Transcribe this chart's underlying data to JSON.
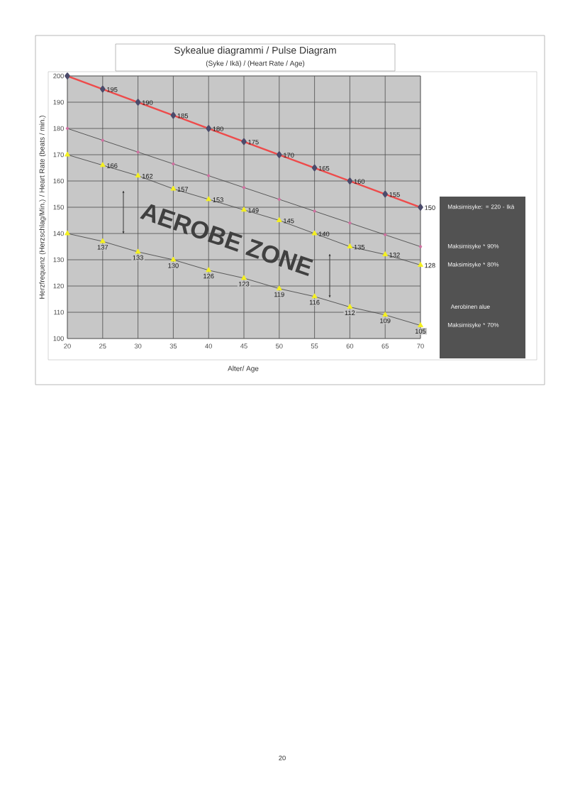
{
  "chart_data": {
    "type": "line",
    "title": "Sykealue diagrammi / Pulse Diagram",
    "subtitle": "(Syke / Ikä) / (Heart Rate / Age)",
    "xlabel": "Alter/ Age",
    "ylabel": "Herzfrequenz (Herzschlag/Min.) / Heart Rate (beats / min.)",
    "x": [
      20,
      25,
      30,
      35,
      40,
      45,
      50,
      55,
      60,
      65,
      70
    ],
    "xlim": [
      20,
      70
    ],
    "xticks": [
      20,
      25,
      30,
      35,
      40,
      45,
      50,
      55,
      60,
      65,
      70
    ],
    "ylim": [
      100,
      200
    ],
    "yticks": [
      100,
      110,
      120,
      130,
      140,
      150,
      160,
      170,
      180,
      190,
      200
    ],
    "grid": true,
    "series": [
      {
        "name": "Maksimisyke: = 220 - Ikä",
        "color": "#ee4b4b",
        "marker": "diamond",
        "values": [
          200,
          195,
          190,
          185,
          180,
          175,
          170,
          165,
          160,
          155,
          150
        ],
        "value_labels": [
          null,
          "195",
          "190",
          "185",
          "180",
          "175",
          "170",
          "165",
          "160",
          "155",
          "150"
        ]
      },
      {
        "name": "Maksimisyke * 90%",
        "color": "#505050",
        "marker": "circle",
        "values": [
          180,
          175.5,
          171,
          166.5,
          162,
          157.5,
          153,
          148.5,
          144,
          139.5,
          135
        ]
      },
      {
        "name": "Maksimisyke * 80%",
        "color": "#505050",
        "marker": "triangle",
        "values": [
          170,
          166,
          162,
          157,
          153,
          149,
          145,
          140,
          135,
          132,
          128
        ],
        "value_labels": [
          null,
          "166",
          "162",
          "157",
          "153",
          "149",
          "145",
          "140",
          "135",
          "132",
          "128"
        ]
      },
      {
        "name": "Maksimisyke * 70%",
        "color": "#505050",
        "marker": "triangle",
        "values": [
          140,
          137,
          133,
          130,
          126,
          123,
          119,
          116,
          112,
          109,
          105
        ],
        "value_labels": [
          null,
          "137",
          "133",
          "130",
          "126",
          "123",
          "119",
          "116",
          "112",
          "109",
          "105"
        ]
      }
    ],
    "annotations": [
      "AEROBE ZONE",
      "Aerobinen alue",
      "20"
    ]
  }
}
